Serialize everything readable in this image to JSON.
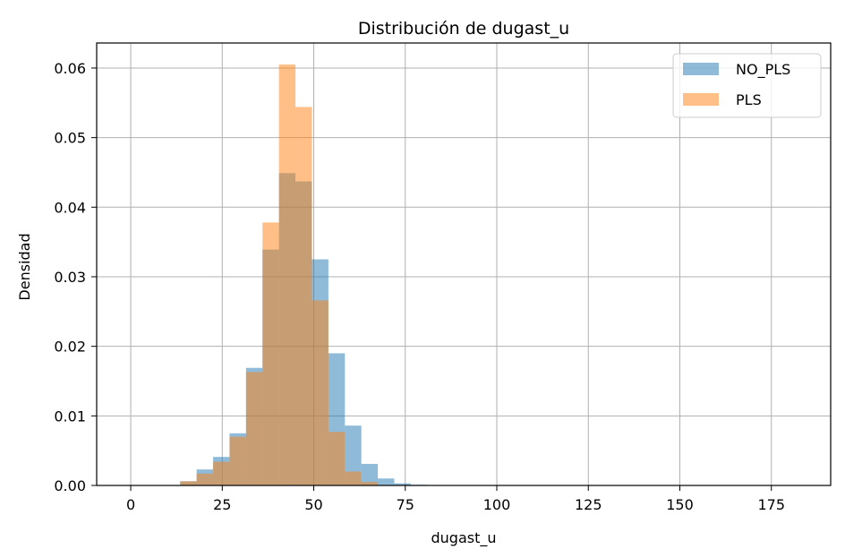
{
  "chart_data": {
    "type": "histogram",
    "title": "Distribución de dugast_u",
    "xlabel": "dugast_u",
    "ylabel": "Densidad",
    "xlim": [
      -9.3,
      191.2
    ],
    "ylim": [
      0,
      0.0636
    ],
    "xticks": [
      0,
      25,
      50,
      75,
      100,
      125,
      150,
      175
    ],
    "yticks": [
      0.0,
      0.01,
      0.02,
      0.03,
      0.04,
      0.05,
      0.06
    ],
    "ytick_labels": [
      "0.00",
      "0.01",
      "0.02",
      "0.03",
      "0.04",
      "0.05",
      "0.06"
    ],
    "grid": true,
    "legend_position": "top-right",
    "series": [
      {
        "name": "NO_PLS",
        "color": "#1f77b4",
        "alpha": 0.5,
        "bins": [
          {
            "x0": 0.0,
            "x1": 4.5,
            "value": 0.0
          },
          {
            "x0": 4.5,
            "x1": 9.0,
            "value": 0.0
          },
          {
            "x0": 9.0,
            "x1": 13.5,
            "value": 0.0
          },
          {
            "x0": 13.5,
            "x1": 18.0,
            "value": 0.0006
          },
          {
            "x0": 18.0,
            "x1": 22.5,
            "value": 0.0023
          },
          {
            "x0": 22.5,
            "x1": 27.0,
            "value": 0.0041
          },
          {
            "x0": 27.0,
            "x1": 31.5,
            "value": 0.0075
          },
          {
            "x0": 31.5,
            "x1": 36.0,
            "value": 0.0169
          },
          {
            "x0": 36.0,
            "x1": 40.5,
            "value": 0.0339
          },
          {
            "x0": 40.5,
            "x1": 45.0,
            "value": 0.0449
          },
          {
            "x0": 45.0,
            "x1": 49.5,
            "value": 0.0437
          },
          {
            "x0": 49.5,
            "x1": 54.0,
            "value": 0.0325
          },
          {
            "x0": 54.0,
            "x1": 58.5,
            "value": 0.019
          },
          {
            "x0": 58.5,
            "x1": 63.0,
            "value": 0.0086
          },
          {
            "x0": 63.0,
            "x1": 67.5,
            "value": 0.0031
          },
          {
            "x0": 67.5,
            "x1": 72.0,
            "value": 0.001
          },
          {
            "x0": 72.0,
            "x1": 76.5,
            "value": 0.0003
          },
          {
            "x0": 76.5,
            "x1": 81.0,
            "value": 0.0001
          },
          {
            "x0": 81.0,
            "x1": 85.5,
            "value": 0.0
          },
          {
            "x0": 85.5,
            "x1": 90.0,
            "value": 0.0
          },
          {
            "x0": 90.0,
            "x1": 94.5,
            "value": 0.0
          },
          {
            "x0": 94.5,
            "x1": 99.0,
            "value": 0.0
          },
          {
            "x0": 99.0,
            "x1": 103.5,
            "value": 0.0
          },
          {
            "x0": 103.5,
            "x1": 108.0,
            "value": 0.0
          },
          {
            "x0": 108.0,
            "x1": 112.5,
            "value": 0.0
          },
          {
            "x0": 112.5,
            "x1": 117.0,
            "value": 0.0
          },
          {
            "x0": 117.0,
            "x1": 121.5,
            "value": 0.0
          },
          {
            "x0": 121.5,
            "x1": 126.0,
            "value": 0.0
          },
          {
            "x0": 126.0,
            "x1": 130.5,
            "value": 0.0
          },
          {
            "x0": 130.5,
            "x1": 135.0,
            "value": 0.0
          },
          {
            "x0": 135.0,
            "x1": 139.5,
            "value": 0.0
          },
          {
            "x0": 139.5,
            "x1": 144.0,
            "value": 0.0
          },
          {
            "x0": 144.0,
            "x1": 148.5,
            "value": 0.0
          },
          {
            "x0": 148.5,
            "x1": 153.0,
            "value": 0.0
          },
          {
            "x0": 153.0,
            "x1": 157.5,
            "value": 0.0
          },
          {
            "x0": 157.5,
            "x1": 162.0,
            "value": 0.0
          },
          {
            "x0": 162.0,
            "x1": 166.5,
            "value": 0.0
          },
          {
            "x0": 166.5,
            "x1": 171.0,
            "value": 0.0
          },
          {
            "x0": 171.0,
            "x1": 175.5,
            "value": 0.0
          },
          {
            "x0": 175.5,
            "x1": 182.0,
            "value": 0.0
          }
        ]
      },
      {
        "name": "PLS",
        "color": "#ff7f0e",
        "alpha": 0.5,
        "bins": [
          {
            "x0": 0.0,
            "x1": 4.5,
            "value": 0.0
          },
          {
            "x0": 4.5,
            "x1": 9.0,
            "value": 0.0
          },
          {
            "x0": 9.0,
            "x1": 13.5,
            "value": 0.0
          },
          {
            "x0": 13.5,
            "x1": 18.0,
            "value": 0.0006
          },
          {
            "x0": 18.0,
            "x1": 22.5,
            "value": 0.0017
          },
          {
            "x0": 22.5,
            "x1": 27.0,
            "value": 0.0034
          },
          {
            "x0": 27.0,
            "x1": 31.5,
            "value": 0.007
          },
          {
            "x0": 31.5,
            "x1": 36.0,
            "value": 0.0163
          },
          {
            "x0": 36.0,
            "x1": 40.5,
            "value": 0.0378
          },
          {
            "x0": 40.5,
            "x1": 45.0,
            "value": 0.0605
          },
          {
            "x0": 45.0,
            "x1": 49.5,
            "value": 0.0544
          },
          {
            "x0": 49.5,
            "x1": 54.0,
            "value": 0.0266
          },
          {
            "x0": 54.0,
            "x1": 58.5,
            "value": 0.0077
          },
          {
            "x0": 58.5,
            "x1": 63.0,
            "value": 0.002
          },
          {
            "x0": 63.0,
            "x1": 67.5,
            "value": 0.0005
          },
          {
            "x0": 67.5,
            "x1": 72.0,
            "value": 0.0
          },
          {
            "x0": 72.0,
            "x1": 76.5,
            "value": 0.0
          },
          {
            "x0": 76.5,
            "x1": 81.0,
            "value": 0.0
          },
          {
            "x0": 81.0,
            "x1": 85.5,
            "value": 0.0
          },
          {
            "x0": 85.5,
            "x1": 90.0,
            "value": 0.0
          },
          {
            "x0": 90.0,
            "x1": 94.5,
            "value": 0.0
          },
          {
            "x0": 94.5,
            "x1": 99.0,
            "value": 0.0
          },
          {
            "x0": 99.0,
            "x1": 103.5,
            "value": 0.0
          },
          {
            "x0": 103.5,
            "x1": 108.0,
            "value": 0.0
          },
          {
            "x0": 108.0,
            "x1": 112.5,
            "value": 0.0
          },
          {
            "x0": 112.5,
            "x1": 117.0,
            "value": 0.0
          },
          {
            "x0": 117.0,
            "x1": 121.5,
            "value": 0.0
          },
          {
            "x0": 121.5,
            "x1": 126.0,
            "value": 0.0
          },
          {
            "x0": 126.0,
            "x1": 130.5,
            "value": 0.0
          },
          {
            "x0": 130.5,
            "x1": 135.0,
            "value": 0.0
          },
          {
            "x0": 135.0,
            "x1": 139.5,
            "value": 0.0
          },
          {
            "x0": 139.5,
            "x1": 144.0,
            "value": 0.0
          },
          {
            "x0": 144.0,
            "x1": 148.5,
            "value": 0.0
          },
          {
            "x0": 148.5,
            "x1": 153.0,
            "value": 0.0
          },
          {
            "x0": 153.0,
            "x1": 157.5,
            "value": 0.0
          },
          {
            "x0": 157.5,
            "x1": 162.0,
            "value": 0.0
          },
          {
            "x0": 162.0,
            "x1": 166.5,
            "value": 0.0
          },
          {
            "x0": 166.5,
            "x1": 171.0,
            "value": 0.0
          },
          {
            "x0": 171.0,
            "x1": 175.5,
            "value": 0.0
          },
          {
            "x0": 175.5,
            "x1": 182.0,
            "value": 0.0
          }
        ]
      }
    ]
  }
}
